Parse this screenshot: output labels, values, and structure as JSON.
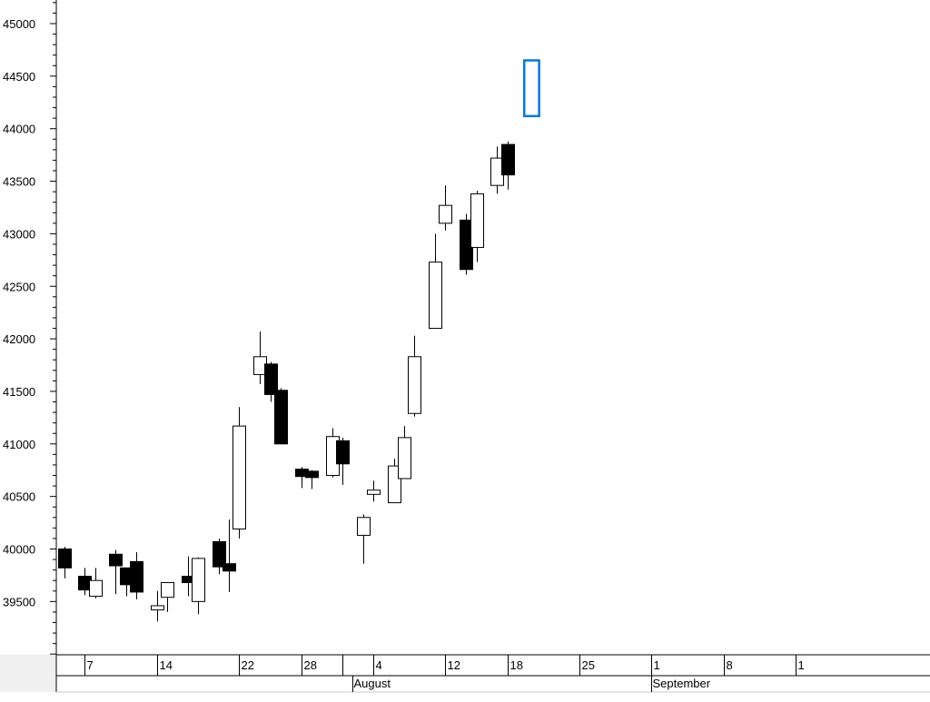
{
  "chart_data": {
    "type": "candlestick",
    "title": "",
    "xlabel": "",
    "ylabel": "",
    "ylim": [
      39000,
      45000
    ],
    "y_ticks": [
      39500,
      40000,
      40500,
      41000,
      41500,
      42000,
      42500,
      43000,
      43500,
      44000,
      44500,
      45000
    ],
    "grid": false,
    "x_ticks": [
      {
        "day": 7,
        "label": "7"
      },
      {
        "day": 14,
        "label": "14"
      },
      {
        "day": 22,
        "label": "22"
      },
      {
        "day": 28,
        "label": "28"
      },
      {
        "day": 32,
        "label": ""
      },
      {
        "day": 35,
        "label": "4"
      },
      {
        "day": 42,
        "label": "12"
      },
      {
        "day": 48,
        "label": "18"
      },
      {
        "day": 55,
        "label": "25"
      },
      {
        "day": 62,
        "label": "1"
      },
      {
        "day": 69,
        "label": "8"
      },
      {
        "day": 76,
        "label": "1"
      }
    ],
    "months": [
      {
        "day": 33,
        "label": "August"
      },
      {
        "day": 62,
        "label": "September"
      }
    ],
    "candles": [
      {
        "day": 5,
        "open": 40000,
        "high": 40020,
        "low": 39720,
        "close": 39820
      },
      {
        "day": 7,
        "open": 39740,
        "high": 39820,
        "low": 39560,
        "close": 39610
      },
      {
        "day": 8,
        "open": 39550,
        "high": 39820,
        "low": 39530,
        "close": 39700
      },
      {
        "day": 10,
        "open": 39950,
        "high": 39990,
        "low": 39570,
        "close": 39840
      },
      {
        "day": 11,
        "open": 39820,
        "high": 39820,
        "low": 39550,
        "close": 39660
      },
      {
        "day": 12,
        "open": 39880,
        "high": 39970,
        "low": 39520,
        "close": 39590
      },
      {
        "day": 14,
        "open": 39420,
        "high": 39600,
        "low": 39310,
        "close": 39460
      },
      {
        "day": 15,
        "open": 39540,
        "high": 39680,
        "low": 39400,
        "close": 39680
      },
      {
        "day": 17,
        "open": 39740,
        "high": 39930,
        "low": 39550,
        "close": 39680
      },
      {
        "day": 18,
        "open": 39500,
        "high": 39920,
        "low": 39380,
        "close": 39910
      },
      {
        "day": 20,
        "open": 40070,
        "high": 40100,
        "low": 39760,
        "close": 39830
      },
      {
        "day": 21,
        "open": 39860,
        "high": 40280,
        "low": 39590,
        "close": 39790
      },
      {
        "day": 22,
        "open": 40190,
        "high": 41350,
        "low": 40100,
        "close": 41170
      },
      {
        "day": 24,
        "open": 41660,
        "high": 42070,
        "low": 41570,
        "close": 41830
      },
      {
        "day": 25,
        "open": 41760,
        "high": 41780,
        "low": 41400,
        "close": 41470
      },
      {
        "day": 26,
        "open": 41510,
        "high": 41530,
        "low": 41000,
        "close": 41000
      },
      {
        "day": 28,
        "open": 40760,
        "high": 40780,
        "low": 40580,
        "close": 40690
      },
      {
        "day": 29,
        "open": 40740,
        "high": 40750,
        "low": 40570,
        "close": 40680
      },
      {
        "day": 31,
        "open": 40700,
        "high": 41150,
        "low": 40680,
        "close": 41070
      },
      {
        "day": 32,
        "open": 41030,
        "high": 41060,
        "low": 40610,
        "close": 40810
      },
      {
        "day": 34,
        "open": 40130,
        "high": 40330,
        "low": 39860,
        "close": 40300
      },
      {
        "day": 35,
        "open": 40520,
        "high": 40650,
        "low": 40450,
        "close": 40560
      },
      {
        "day": 37,
        "open": 40440,
        "high": 40860,
        "low": 40440,
        "close": 40790
      },
      {
        "day": 38,
        "open": 40670,
        "high": 41170,
        "low": 40670,
        "close": 41060
      },
      {
        "day": 39,
        "open": 41290,
        "high": 42030,
        "low": 41260,
        "close": 41830
      },
      {
        "day": 41,
        "open": 42100,
        "high": 43000,
        "low": 42100,
        "close": 42730
      },
      {
        "day": 42,
        "open": 43100,
        "high": 43460,
        "low": 43030,
        "close": 43270
      },
      {
        "day": 44,
        "open": 43130,
        "high": 43190,
        "low": 42610,
        "close": 42660
      },
      {
        "day": 45,
        "open": 42870,
        "high": 43410,
        "low": 42730,
        "close": 43380
      },
      {
        "day": 47,
        "open": 43460,
        "high": 43830,
        "low": 43380,
        "close": 43720
      },
      {
        "day": 48,
        "open": 43850,
        "high": 43880,
        "low": 43420,
        "close": 43560
      }
    ],
    "marker": {
      "from_day": 50,
      "to_day": 51,
      "top": 44650,
      "bottom": 44120,
      "color": "#0a78d7"
    }
  }
}
